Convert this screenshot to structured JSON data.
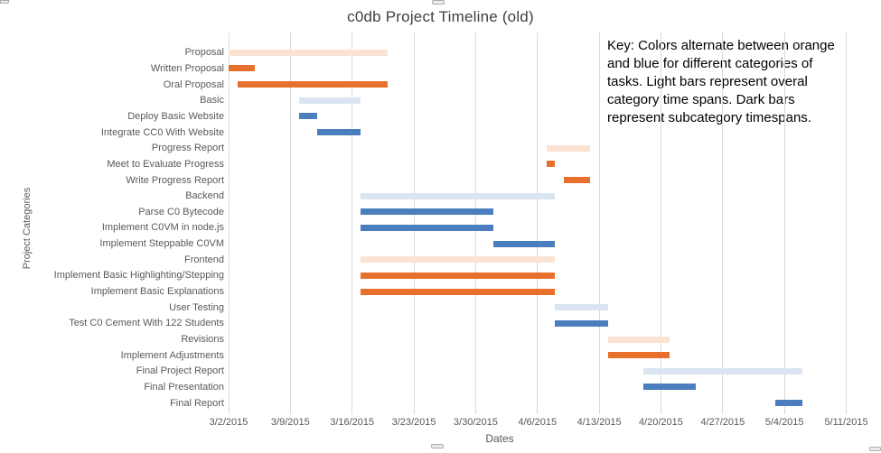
{
  "title": "c0db Project Timeline (old)",
  "key_note": {
    "lines": [
      "Key: Colors alternate between orange",
      "and blue for different categories of",
      "tasks. Light bars represent overal",
      "category time spans. Dark bars",
      "represent subcategory timespans."
    ]
  },
  "colors": {
    "orange_dark": "#E8702D",
    "orange_light": "#FBE3D4",
    "blue_dark": "#4B7EBE",
    "blue_light": "#DBE5F1",
    "gridline": "#D9D9D9",
    "axis_text": "#595959",
    "title_text": "#404040"
  },
  "chart_data": {
    "type": "bar",
    "subtype": "gantt",
    "title": "c0db Project Timeline (old)",
    "xlabel": "Dates",
    "ylabel": "Project Categories",
    "grid": true,
    "legend_position": "none",
    "x_ticks": [
      "3/2/2015",
      "3/9/2015",
      "3/16/2015",
      "3/23/2015",
      "3/30/2015",
      "4/6/2015",
      "4/13/2015",
      "4/20/2015",
      "4/27/2015",
      "5/4/2015",
      "5/11/2015"
    ],
    "tasks": [
      {
        "label": "Proposal",
        "start": "3/2/2015",
        "end": "3/20/2015",
        "style": "orange_light"
      },
      {
        "label": "Written Proposal",
        "start": "3/2/2015",
        "end": "3/5/2015",
        "style": "orange_dark"
      },
      {
        "label": "Oral Proposal",
        "start": "3/3/2015",
        "end": "3/20/2015",
        "style": "orange_dark"
      },
      {
        "label": "Basic",
        "start": "3/10/2015",
        "end": "3/17/2015",
        "style": "blue_light"
      },
      {
        "label": "Deploy Basic Website",
        "start": "3/10/2015",
        "end": "3/12/2015",
        "style": "blue_dark"
      },
      {
        "label": "Integrate CC0 With Website",
        "start": "3/12/2015",
        "end": "3/17/2015",
        "style": "blue_dark"
      },
      {
        "label": "Progress Report",
        "start": "4/7/2015",
        "end": "4/12/2015",
        "style": "orange_light"
      },
      {
        "label": "Meet to Evaluate Progress",
        "start": "4/7/2015",
        "end": "4/8/2015",
        "style": "orange_dark"
      },
      {
        "label": "Write Progress Report",
        "start": "4/9/2015",
        "end": "4/12/2015",
        "style": "orange_dark"
      },
      {
        "label": "Backend",
        "start": "3/17/2015",
        "end": "4/8/2015",
        "style": "blue_light"
      },
      {
        "label": "Parse C0 Bytecode",
        "start": "3/17/2015",
        "end": "4/1/2015",
        "style": "blue_dark"
      },
      {
        "label": "Implement C0VM in node.js",
        "start": "3/17/2015",
        "end": "4/1/2015",
        "style": "blue_dark"
      },
      {
        "label": "Implement Steppable C0VM",
        "start": "4/1/2015",
        "end": "4/8/2015",
        "style": "blue_dark"
      },
      {
        "label": "Frontend",
        "start": "3/17/2015",
        "end": "4/8/2015",
        "style": "orange_light"
      },
      {
        "label": "Implement Basic Highlighting/Stepping",
        "start": "3/17/2015",
        "end": "4/8/2015",
        "style": "orange_dark"
      },
      {
        "label": "Implement Basic Explanations",
        "start": "3/17/2015",
        "end": "4/8/2015",
        "style": "orange_dark"
      },
      {
        "label": "User Testing",
        "start": "4/8/2015",
        "end": "4/14/2015",
        "style": "blue_light"
      },
      {
        "label": "Test C0 Cement With 122 Students",
        "start": "4/8/2015",
        "end": "4/14/2015",
        "style": "blue_dark"
      },
      {
        "label": "Revisions",
        "start": "4/14/2015",
        "end": "4/21/2015",
        "style": "orange_light"
      },
      {
        "label": "Implement Adjustments",
        "start": "4/14/2015",
        "end": "4/21/2015",
        "style": "orange_dark"
      },
      {
        "label": "Final Project Report",
        "start": "4/18/2015",
        "end": "5/6/2015",
        "style": "blue_light"
      },
      {
        "label": "Final Presentation",
        "start": "4/18/2015",
        "end": "4/24/2015",
        "style": "blue_dark"
      },
      {
        "label": "Final Report",
        "start": "5/3/2015",
        "end": "5/6/2015",
        "style": "blue_dark"
      }
    ]
  }
}
